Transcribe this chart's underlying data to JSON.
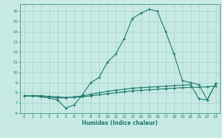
{
  "xlabel": "Humidex (Indice chaleur)",
  "background_color": "#c8eae4",
  "grid_color": "#a8d4ce",
  "line_color": "#1a7a6e",
  "xlim": [
    -0.5,
    23.5
  ],
  "ylim": [
    6.0,
    16.7
  ],
  "yticks": [
    6,
    7,
    8,
    9,
    10,
    11,
    12,
    13,
    14,
    15,
    16
  ],
  "xticks": [
    0,
    1,
    2,
    3,
    4,
    5,
    6,
    7,
    8,
    9,
    10,
    11,
    12,
    13,
    14,
    15,
    16,
    17,
    18,
    19,
    20,
    21,
    22,
    23
  ],
  "xtick_labels": [
    "0",
    "1",
    "2",
    "3",
    "4",
    "5",
    "6",
    "7",
    "8",
    "9",
    "10",
    "11",
    "12",
    "13",
    "14",
    "15",
    "16",
    "17",
    "18",
    "19",
    "20",
    "21",
    "22",
    "23"
  ],
  "series": [
    {
      "x": [
        0,
        1,
        2,
        3,
        4,
        5,
        6,
        7,
        8,
        9,
        10,
        11,
        12,
        13,
        14,
        15,
        16,
        17,
        18,
        19,
        20,
        21,
        22,
        23
      ],
      "y": [
        7.7,
        7.7,
        7.6,
        7.5,
        7.3,
        6.5,
        6.8,
        7.8,
        9.0,
        9.5,
        11.0,
        11.8,
        13.3,
        15.3,
        15.8,
        16.2,
        16.0,
        14.0,
        11.8,
        9.2,
        9.0,
        8.8,
        7.3,
        8.9
      ]
    },
    {
      "x": [
        0,
        1,
        2,
        3,
        4,
        5,
        6,
        7,
        8,
        9,
        10,
        11,
        12,
        13,
        14,
        15,
        16,
        17,
        18,
        19,
        20,
        21,
        22,
        23
      ],
      "y": [
        7.7,
        7.7,
        7.7,
        7.6,
        7.5,
        7.5,
        7.6,
        7.7,
        7.85,
        8.0,
        8.15,
        8.25,
        8.35,
        8.45,
        8.5,
        8.55,
        8.6,
        8.65,
        8.7,
        8.75,
        8.8,
        7.4,
        7.3,
        8.9
      ]
    },
    {
      "x": [
        0,
        1,
        2,
        3,
        4,
        5,
        6,
        7,
        8,
        9,
        10,
        11,
        12,
        13,
        14,
        15,
        16,
        17,
        18,
        19,
        20,
        21,
        22,
        23
      ],
      "y": [
        7.7,
        7.7,
        7.7,
        7.65,
        7.6,
        7.55,
        7.55,
        7.6,
        7.7,
        7.8,
        7.9,
        8.0,
        8.1,
        8.2,
        8.25,
        8.3,
        8.35,
        8.4,
        8.45,
        8.5,
        8.55,
        8.55,
        8.6,
        8.65
      ]
    }
  ]
}
